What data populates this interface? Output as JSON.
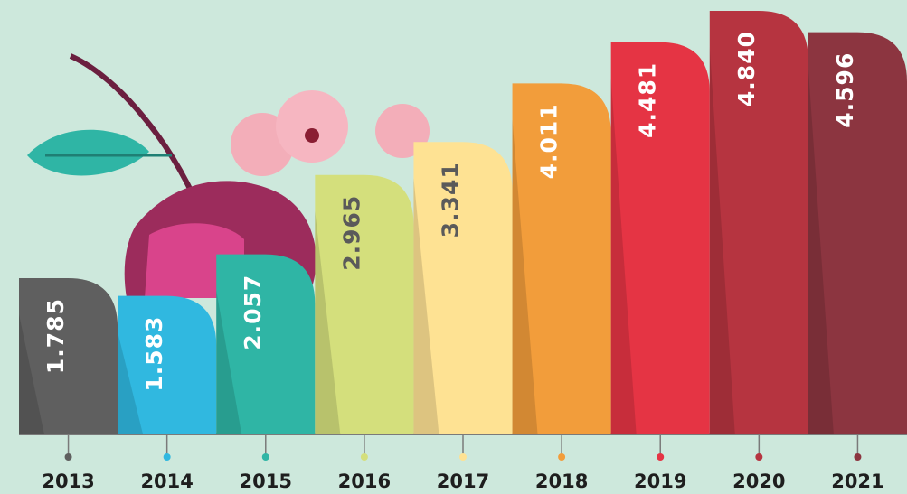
{
  "chart_data": {
    "type": "bar",
    "categories": [
      "2013",
      "2014",
      "2015",
      "2016",
      "2017",
      "2018",
      "2019",
      "2020",
      "2021"
    ],
    "values": [
      1.785,
      1.583,
      2.057,
      2.965,
      3.341,
      4.011,
      4.481,
      4.84,
      4.596
    ],
    "value_labels": [
      "1.785",
      "1.583",
      "2.057",
      "2.965",
      "3.341",
      "4.011",
      "4.481",
      "4.840",
      "4.596"
    ],
    "colors": [
      "#5f5f5f",
      "#30b8e0",
      "#2fb5a5",
      "#d4df7c",
      "#fee293",
      "#f29d3b",
      "#e53444",
      "#b63440",
      "#8c3540"
    ]
  }
}
